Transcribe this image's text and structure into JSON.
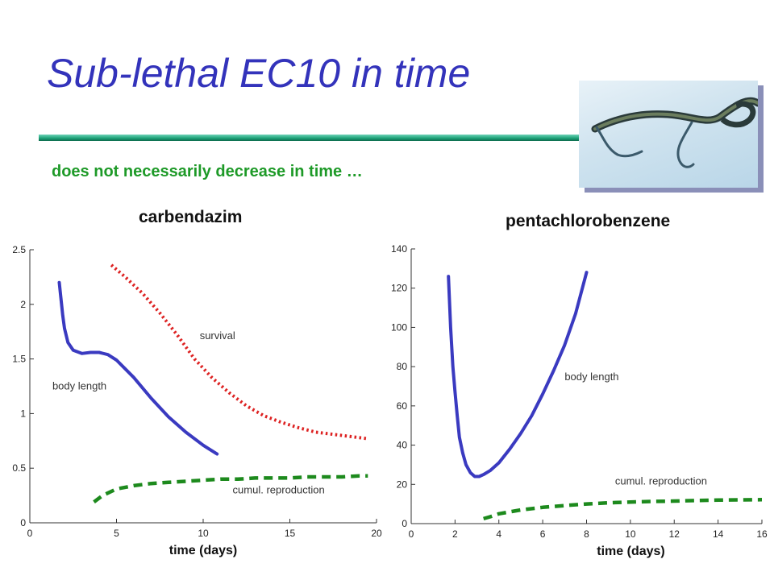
{
  "slide": {
    "title": "Sub-lethal EC10 in time",
    "subtitle": "does not necessarily decrease in time …",
    "accent_color": "#3333bb",
    "subtitle_color": "#1e9a28",
    "rule_color": "#1fa37a"
  },
  "chart_data": [
    {
      "type": "line",
      "title": "carbendazim",
      "xlabel": "time (days)",
      "ylabel": "",
      "xlim": [
        0,
        20
      ],
      "ylim": [
        0,
        2.5
      ],
      "xticks": [
        0,
        5,
        10,
        15,
        20
      ],
      "yticks": [
        0,
        0.5,
        1,
        1.5,
        2,
        2.5
      ],
      "xtick_labels": [
        "0",
        "5",
        "10",
        "15",
        "20"
      ],
      "ytick_labels": [
        "0",
        "0.5",
        "1",
        "1.5",
        "2",
        "2.5"
      ],
      "series": [
        {
          "name": "body length",
          "color": "#3a3ac0",
          "style": "solid",
          "x": [
            1.7,
            1.9,
            2.0,
            2.2,
            2.5,
            3.0,
            3.5,
            4.0,
            4.5,
            5.0,
            6.0,
            7.0,
            8.0,
            9.0,
            10.0,
            10.8
          ],
          "y": [
            2.2,
            1.9,
            1.78,
            1.65,
            1.58,
            1.55,
            1.56,
            1.56,
            1.54,
            1.49,
            1.33,
            1.14,
            0.97,
            0.83,
            0.71,
            0.63
          ]
        },
        {
          "name": "survival",
          "color": "#dd2222",
          "style": "dotted",
          "x": [
            4.7,
            5.5,
            6.5,
            7.5,
            8.5,
            9.5,
            10.5,
            11.5,
            12.5,
            13.5,
            14.5,
            15.5,
            16.5,
            17.5,
            18.5,
            19.5
          ],
          "y": [
            2.36,
            2.25,
            2.1,
            1.92,
            1.72,
            1.5,
            1.33,
            1.19,
            1.07,
            0.98,
            0.92,
            0.87,
            0.83,
            0.81,
            0.79,
            0.77
          ]
        },
        {
          "name": "cumul. reproduction",
          "color": "#1d8a1d",
          "style": "dashed",
          "x": [
            3.7,
            4.2,
            5.0,
            6.0,
            7.0,
            8.0,
            9.0,
            10.0,
            11.0,
            12.0,
            13.0,
            14.0,
            15.0,
            16.0,
            17.0,
            18.0,
            19.0,
            19.5
          ],
          "y": [
            0.19,
            0.25,
            0.31,
            0.34,
            0.36,
            0.37,
            0.38,
            0.39,
            0.4,
            0.4,
            0.41,
            0.41,
            0.41,
            0.42,
            0.42,
            0.42,
            0.43,
            0.43
          ]
        }
      ],
      "annotations": [
        {
          "text": "body length",
          "x": 1.3,
          "y": 1.22
        },
        {
          "text": "survival",
          "x": 9.8,
          "y": 1.68
        },
        {
          "text": "cumul. reproduction",
          "x": 11.7,
          "y": 0.27
        }
      ]
    },
    {
      "type": "line",
      "title": "pentachlorobenzene",
      "xlabel": "time (days)",
      "ylabel": "",
      "xlim": [
        0,
        16
      ],
      "ylim": [
        0,
        140
      ],
      "xticks": [
        0,
        2,
        4,
        6,
        8,
        10,
        12,
        14,
        16
      ],
      "yticks": [
        0,
        20,
        40,
        60,
        80,
        100,
        120,
        140
      ],
      "xtick_labels": [
        "0",
        "2",
        "4",
        "6",
        "8",
        "10",
        "12",
        "14",
        "16"
      ],
      "ytick_labels": [
        "0",
        "20",
        "40",
        "60",
        "80",
        "100",
        "120",
        "140"
      ],
      "series": [
        {
          "name": "body length",
          "color": "#3a3ac0",
          "style": "solid",
          "x": [
            1.7,
            1.8,
            1.9,
            2.0,
            2.1,
            2.2,
            2.35,
            2.5,
            2.7,
            2.9,
            3.1,
            3.3,
            3.6,
            4.0,
            4.5,
            5.0,
            5.5,
            6.0,
            6.5,
            7.0,
            7.5,
            8.0
          ],
          "y": [
            126,
            100,
            80,
            67,
            55,
            44,
            36,
            30,
            26,
            24,
            24,
            25,
            27,
            31,
            38,
            46,
            55,
            66,
            78,
            91,
            107,
            128
          ]
        },
        {
          "name": "cumul. reproduction",
          "color": "#1d8a1d",
          "style": "dashed",
          "x": [
            3.3,
            3.6,
            4.0,
            4.5,
            5.0,
            6.0,
            7.0,
            8.0,
            9.0,
            10.0,
            11.0,
            12.0,
            13.0,
            14.0,
            15.0,
            16.0
          ],
          "y": [
            2.5,
            3.5,
            5,
            6,
            7,
            8.3,
            9.2,
            10,
            10.6,
            11,
            11.3,
            11.5,
            11.8,
            12,
            12.1,
            12.2
          ]
        }
      ],
      "annotations": [
        {
          "text": "body length",
          "x": 7.0,
          "y": 73
        },
        {
          "text": "cumul. reproduction",
          "x": 9.3,
          "y": 20
        }
      ]
    }
  ]
}
